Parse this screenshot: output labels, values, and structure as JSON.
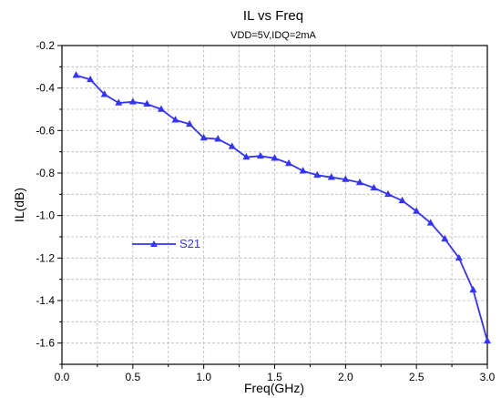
{
  "chart_data": {
    "type": "line",
    "title": "IL vs Freq",
    "subtitle": "VDD=5V,IDQ=2mA",
    "xlabel": "Freq(GHz)",
    "ylabel": "IL(dB)",
    "xlim": [
      0.0,
      3.0
    ],
    "ylim": [
      -1.7,
      -0.2
    ],
    "xticks": [
      "0.0",
      "0.5",
      "1.0",
      "1.5",
      "2.0",
      "2.5",
      "3.0"
    ],
    "yticks": [
      "-0.2",
      "-0.4",
      "-0.6",
      "-0.8",
      "-1.0",
      "-1.2",
      "-1.4",
      "-1.6"
    ],
    "grid": true,
    "legend_position": "middle-left",
    "series": [
      {
        "name": "S21",
        "color": "#3333ff",
        "marker": "triangle",
        "x": [
          0.1,
          0.2,
          0.3,
          0.4,
          0.5,
          0.6,
          0.7,
          0.8,
          0.9,
          1.0,
          1.1,
          1.2,
          1.3,
          1.4,
          1.5,
          1.6,
          1.7,
          1.8,
          1.9,
          2.0,
          2.1,
          2.2,
          2.3,
          2.4,
          2.5,
          2.6,
          2.7,
          2.8,
          2.9,
          3.0
        ],
        "y": [
          -0.34,
          -0.36,
          -0.43,
          -0.47,
          -0.465,
          -0.475,
          -0.5,
          -0.55,
          -0.57,
          -0.635,
          -0.64,
          -0.675,
          -0.725,
          -0.72,
          -0.73,
          -0.755,
          -0.79,
          -0.81,
          -0.82,
          -0.83,
          -0.845,
          -0.87,
          -0.9,
          -0.93,
          -0.98,
          -1.035,
          -1.11,
          -1.2,
          -1.35,
          -1.59
        ]
      }
    ]
  }
}
